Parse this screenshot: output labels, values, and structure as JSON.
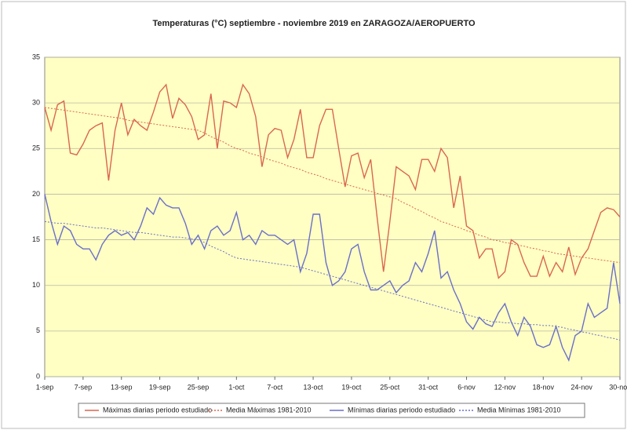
{
  "chart_data": {
    "type": "line",
    "title": "Temperaturas (°C) septiembre - noviembre 2019 en ZARAGOZA/AEROPUERTO",
    "categories": [
      "1-sep",
      null,
      null,
      null,
      null,
      null,
      "7-sep",
      null,
      null,
      null,
      null,
      null,
      "13-sep",
      null,
      null,
      null,
      null,
      null,
      "19-sep",
      null,
      null,
      null,
      null,
      null,
      "25-sep",
      null,
      null,
      null,
      null,
      null,
      "1-oct",
      null,
      null,
      null,
      null,
      null,
      "7-oct",
      null,
      null,
      null,
      null,
      null,
      "13-oct",
      null,
      null,
      null,
      null,
      null,
      "19-oct",
      null,
      null,
      null,
      null,
      null,
      "25-oct",
      null,
      null,
      null,
      null,
      null,
      "31-oct",
      null,
      null,
      null,
      null,
      null,
      "6-nov",
      null,
      null,
      null,
      null,
      null,
      "12-nov",
      null,
      null,
      null,
      null,
      null,
      "18-nov",
      null,
      null,
      null,
      null,
      null,
      "24-nov",
      null,
      null,
      null,
      null,
      null,
      "30-nov"
    ],
    "ylim": [
      0,
      35
    ],
    "yticks": [
      0,
      5,
      10,
      15,
      20,
      25,
      30,
      35
    ],
    "grid": true,
    "legend": "bottom",
    "series": [
      {
        "name": "Máximas diarias periodo estudiado",
        "color": "#d9674f",
        "dashed": false,
        "values": [
          29.5,
          27,
          29.8,
          30.2,
          24.5,
          24.3,
          25.5,
          27,
          27.5,
          27.8,
          21.5,
          27,
          30,
          26.5,
          28.2,
          27.5,
          27,
          29,
          31.2,
          32,
          28.3,
          30.5,
          29.8,
          28.5,
          26,
          26.5,
          31,
          25,
          30.2,
          30,
          29.5,
          32,
          31,
          28.5,
          23,
          26.5,
          27.2,
          27,
          24,
          26,
          29.3,
          24,
          24,
          27.5,
          29.3,
          29.3,
          25,
          20.8,
          24.2,
          24.5,
          21.8,
          23.8,
          17.5,
          11.5,
          17,
          23,
          22.5,
          22,
          20.5,
          23.8,
          23.8,
          22.5,
          25,
          24,
          18.5,
          22,
          16.5,
          16,
          13,
          14,
          14,
          10.8,
          11.5,
          15,
          14.5,
          12.5,
          11,
          11,
          13.2,
          11,
          12.5,
          11.5,
          14.2,
          11.2,
          13,
          14,
          16,
          18,
          18.5,
          18.3,
          17.5
        ]
      },
      {
        "name": "Media Máximas 1981-2010",
        "color": "#d9674f",
        "dashed": true,
        "values": [
          29.5,
          29.4,
          29.3,
          29.2,
          29.1,
          29.0,
          28.9,
          28.8,
          28.7,
          28.6,
          28.5,
          28.4,
          28.3,
          28.1,
          28.0,
          27.9,
          27.8,
          27.7,
          27.6,
          27.5,
          27.4,
          27.3,
          27.2,
          27.1,
          27.0,
          26.7,
          26.3,
          26.0,
          25.7,
          25.3,
          25.0,
          24.8,
          24.5,
          24.3,
          24.1,
          23.8,
          23.6,
          23.4,
          23.1,
          22.9,
          22.7,
          22.4,
          22.2,
          22.0,
          21.7,
          21.5,
          21.3,
          21.1,
          20.9,
          20.7,
          20.5,
          20.3,
          20.1,
          19.9,
          19.7,
          19.5,
          19.1,
          18.8,
          18.4,
          18.1,
          17.7,
          17.4,
          17.0,
          16.8,
          16.5,
          16.3,
          16.0,
          15.8,
          15.5,
          15.3,
          15.0,
          14.9,
          14.7,
          14.6,
          14.4,
          14.3,
          14.1,
          14.0,
          13.8,
          13.7,
          13.5,
          13.4,
          13.3,
          13.2,
          13.1,
          13.0,
          12.9,
          12.8,
          12.7,
          12.6,
          12.5
        ]
      },
      {
        "name": "Mínimas diarias periodo estudiado",
        "color": "#6a6fc9",
        "dashed": false,
        "values": [
          20,
          17,
          14.5,
          16.5,
          16,
          14.5,
          14,
          14,
          12.8,
          14.5,
          15.5,
          16,
          15.5,
          15.8,
          15,
          16.5,
          18.5,
          17.8,
          19.6,
          18.8,
          18.5,
          18.5,
          16.8,
          14.5,
          15.5,
          14,
          16,
          16.5,
          15.5,
          16,
          18,
          15,
          15.5,
          14.5,
          16,
          15.5,
          15.5,
          15,
          14.5,
          15,
          11.5,
          13.5,
          17.8,
          17.8,
          12.5,
          10,
          10.5,
          11.5,
          14,
          14.5,
          11.5,
          9.5,
          9.5,
          10,
          10.5,
          9.2,
          10,
          10.5,
          12.5,
          11.5,
          13.5,
          16,
          10.8,
          11.5,
          9.5,
          8,
          6,
          5.2,
          6.5,
          5.8,
          5.5,
          7,
          8,
          6,
          4.5,
          6.5,
          5.5,
          3.5,
          3.2,
          3.5,
          5.5,
          3.2,
          1.8,
          4.5,
          5,
          8,
          6.5,
          7,
          7.5,
          12.5,
          8
        ]
      },
      {
        "name": "Media Mínimas 1981-2010",
        "color": "#6a6fc9",
        "dashed": true,
        "values": [
          17.0,
          16.9,
          16.8,
          16.8,
          16.7,
          16.6,
          16.5,
          16.4,
          16.3,
          16.3,
          16.2,
          16.1,
          16.0,
          15.9,
          15.8,
          15.8,
          15.7,
          15.6,
          15.5,
          15.4,
          15.3,
          15.3,
          15.2,
          15.1,
          15.0,
          14.7,
          14.3,
          14.0,
          13.7,
          13.3,
          13.0,
          12.9,
          12.8,
          12.7,
          12.6,
          12.5,
          12.4,
          12.3,
          12.2,
          12.1,
          12.0,
          11.8,
          11.6,
          11.4,
          11.2,
          11.0,
          10.8,
          10.6,
          10.4,
          10.2,
          10.0,
          9.8,
          9.6,
          9.4,
          9.2,
          9.0,
          8.8,
          8.6,
          8.4,
          8.2,
          8.0,
          7.8,
          7.6,
          7.4,
          7.2,
          7.0,
          6.8,
          6.6,
          6.4,
          6.2,
          6.0,
          6.0,
          5.9,
          5.9,
          5.8,
          5.8,
          5.7,
          5.7,
          5.6,
          5.6,
          5.5,
          5.4,
          5.2,
          5.1,
          4.9,
          4.8,
          4.6,
          4.5,
          4.3,
          4.2,
          4.0
        ]
      }
    ]
  }
}
